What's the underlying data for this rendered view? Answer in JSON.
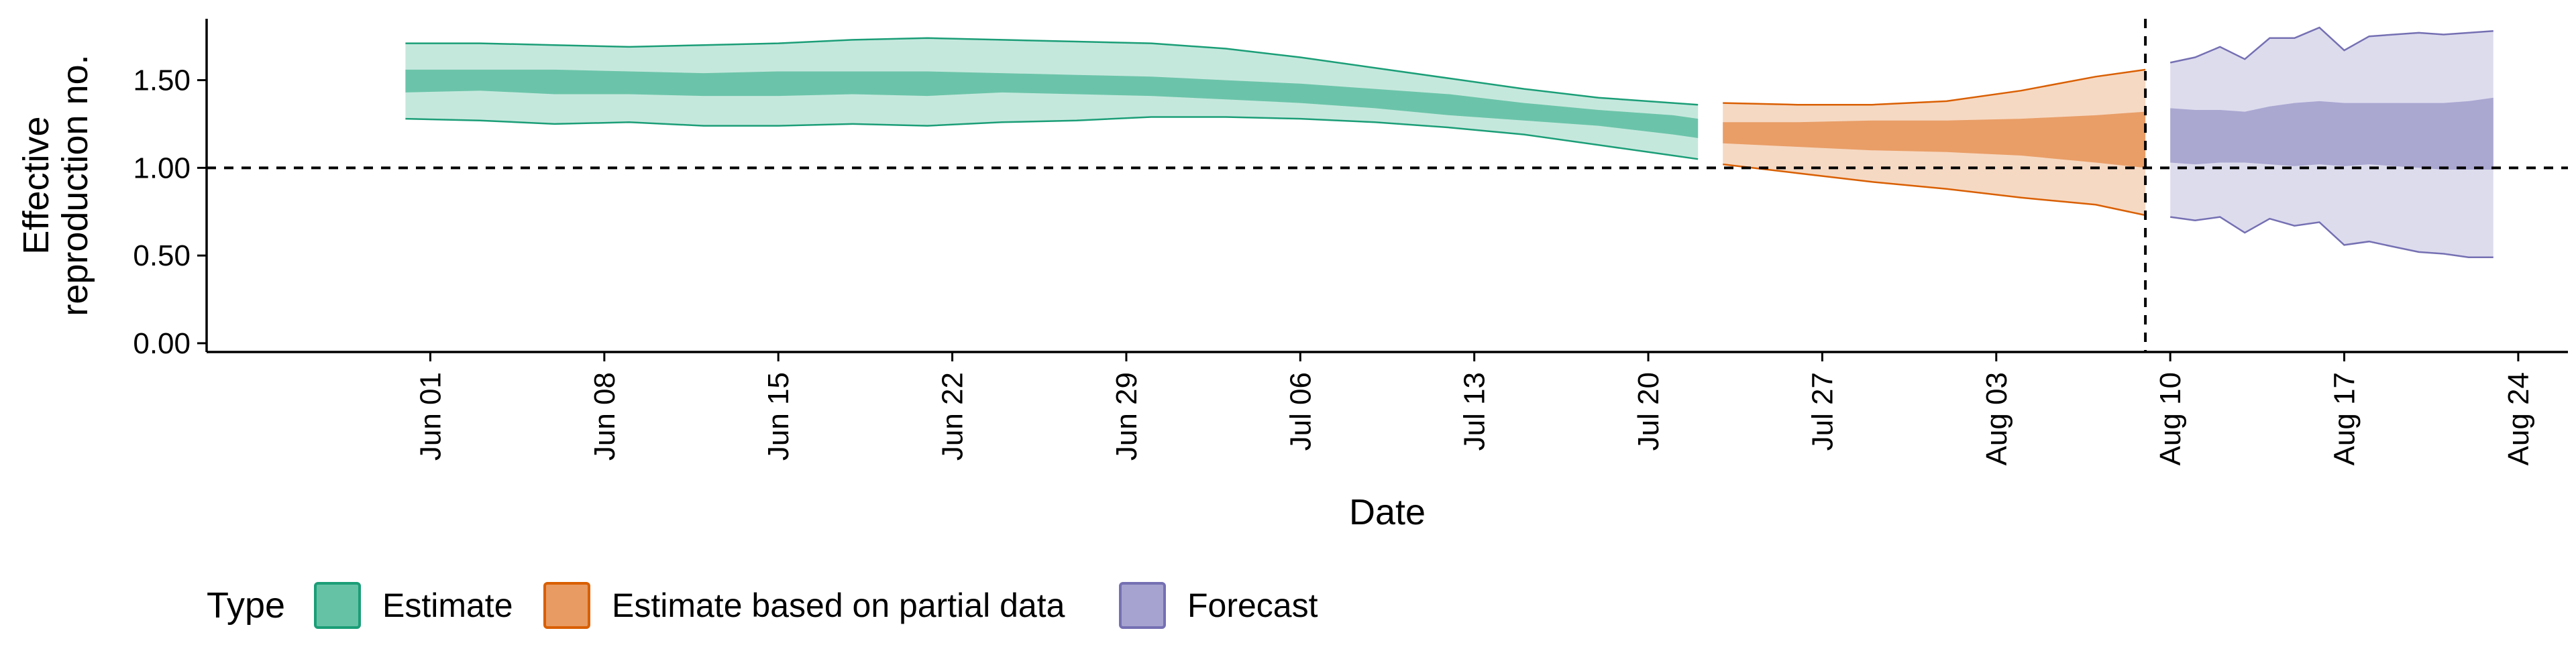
{
  "chart_data": {
    "type": "area",
    "xlabel": "Date",
    "ylabel_lines": [
      "Effective",
      "reproduction no."
    ],
    "ylim": [
      -0.05,
      1.85
    ],
    "yticks": [
      0.0,
      0.5,
      1.0,
      1.5
    ],
    "ytick_labels": [
      "0.00",
      "0.50",
      "1.00",
      "1.50"
    ],
    "xlim": [
      "2020-05-23",
      "2020-08-26"
    ],
    "xticks": [
      "2020-06-01",
      "2020-06-08",
      "2020-06-15",
      "2020-06-22",
      "2020-06-29",
      "2020-07-06",
      "2020-07-13",
      "2020-07-20",
      "2020-07-27",
      "2020-08-03",
      "2020-08-10",
      "2020-08-17",
      "2020-08-24"
    ],
    "xtick_labels": [
      "Jun 01",
      "Jun 08",
      "Jun 15",
      "Jun 22",
      "Jun 29",
      "Jul 06",
      "Jul 13",
      "Jul 20",
      "Jul 27",
      "Aug 03",
      "Aug 10",
      "Aug 17",
      "Aug 24"
    ],
    "reference_hline": 1.0,
    "reference_vline": "2020-08-09",
    "grid": false,
    "legend_position": "bottom",
    "legend_title": "Type",
    "series": [
      {
        "name": "Estimate",
        "fill": "#66c2a5",
        "outline": "#1b9e77",
        "x": [
          "2020-05-31",
          "2020-06-03",
          "2020-06-06",
          "2020-06-09",
          "2020-06-12",
          "2020-06-15",
          "2020-06-18",
          "2020-06-21",
          "2020-06-24",
          "2020-06-27",
          "2020-06-30",
          "2020-07-03",
          "2020-07-06",
          "2020-07-09",
          "2020-07-12",
          "2020-07-15",
          "2020-07-18",
          "2020-07-21",
          "2020-07-22"
        ],
        "lower90": [
          1.28,
          1.27,
          1.25,
          1.26,
          1.24,
          1.24,
          1.25,
          1.24,
          1.26,
          1.27,
          1.29,
          1.29,
          1.28,
          1.26,
          1.23,
          1.19,
          1.13,
          1.07,
          1.05
        ],
        "upper90": [
          1.71,
          1.71,
          1.7,
          1.69,
          1.7,
          1.71,
          1.73,
          1.74,
          1.73,
          1.72,
          1.71,
          1.68,
          1.63,
          1.57,
          1.51,
          1.45,
          1.4,
          1.37,
          1.36
        ],
        "lower50": [
          1.43,
          1.44,
          1.42,
          1.42,
          1.41,
          1.41,
          1.42,
          1.41,
          1.43,
          1.42,
          1.41,
          1.39,
          1.37,
          1.34,
          1.3,
          1.27,
          1.24,
          1.19,
          1.17
        ],
        "upper50": [
          1.56,
          1.56,
          1.56,
          1.55,
          1.54,
          1.55,
          1.55,
          1.55,
          1.54,
          1.53,
          1.52,
          1.5,
          1.48,
          1.45,
          1.42,
          1.37,
          1.33,
          1.3,
          1.28
        ]
      },
      {
        "name": "Estimate based on partial data",
        "fill": "#e89b62",
        "outline": "#d95f02",
        "x": [
          "2020-07-23",
          "2020-07-26",
          "2020-07-29",
          "2020-08-01",
          "2020-08-04",
          "2020-08-07",
          "2020-08-09"
        ],
        "lower90": [
          1.02,
          0.97,
          0.92,
          0.88,
          0.83,
          0.79,
          0.73
        ],
        "upper90": [
          1.37,
          1.36,
          1.36,
          1.38,
          1.44,
          1.52,
          1.56
        ],
        "lower50": [
          1.14,
          1.12,
          1.1,
          1.09,
          1.07,
          1.03,
          1.0
        ],
        "upper50": [
          1.26,
          1.26,
          1.27,
          1.27,
          1.28,
          1.3,
          1.32
        ]
      },
      {
        "name": "Forecast",
        "fill": "#a6a3d0",
        "outline": "#7570b3",
        "x": [
          "2020-08-10",
          "2020-08-11",
          "2020-08-12",
          "2020-08-13",
          "2020-08-14",
          "2020-08-15",
          "2020-08-16",
          "2020-08-17",
          "2020-08-18",
          "2020-08-19",
          "2020-08-20",
          "2020-08-21",
          "2020-08-22",
          "2020-08-23"
        ],
        "lower90": [
          0.72,
          0.7,
          0.72,
          0.63,
          0.71,
          0.67,
          0.69,
          0.56,
          0.58,
          0.55,
          0.52,
          0.51,
          0.49,
          0.49
        ],
        "upper90": [
          1.6,
          1.63,
          1.69,
          1.62,
          1.74,
          1.74,
          1.8,
          1.67,
          1.75,
          1.76,
          1.77,
          1.76,
          1.77,
          1.78
        ],
        "lower50": [
          1.03,
          1.02,
          1.03,
          1.03,
          1.02,
          1.01,
          1.02,
          1.01,
          1.02,
          1.01,
          1.0,
          0.99,
          0.99,
          0.99
        ],
        "upper50": [
          1.34,
          1.33,
          1.33,
          1.32,
          1.35,
          1.37,
          1.38,
          1.37,
          1.37,
          1.37,
          1.37,
          1.37,
          1.38,
          1.4
        ]
      }
    ]
  }
}
